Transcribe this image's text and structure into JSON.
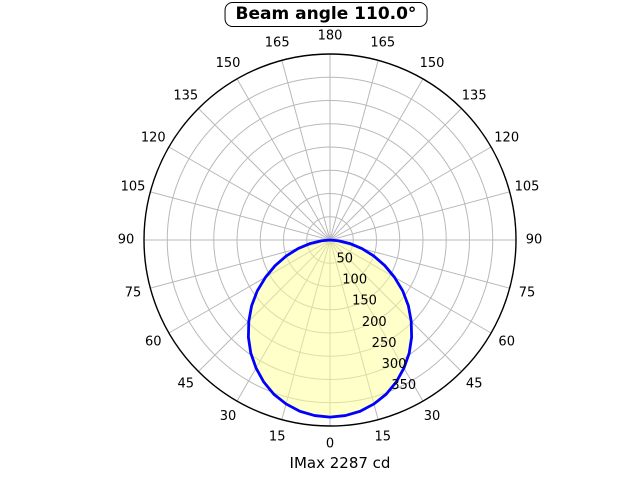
{
  "chart_data": {
    "type": "line",
    "subtype": "polar-intensity-distribution",
    "title": "Beam angle 110.0°",
    "footer": "IMax 2287 cd",
    "beam_angle_deg": 110.0,
    "imax_cd": 2287,
    "theta_axis": {
      "tick_step_deg": 15,
      "tick_labels_deg": [
        0,
        15,
        30,
        45,
        60,
        75,
        90,
        105,
        120,
        135,
        150,
        165,
        180
      ],
      "mirrored_both_sides": true,
      "zero_direction": "down"
    },
    "r_axis": {
      "max": 400,
      "tick_values": [
        50,
        100,
        150,
        200,
        250,
        300,
        350
      ],
      "label_ray_deg_from_nadir": 25
    },
    "grid": true,
    "series": [
      {
        "name": "luminous-intensity-curve",
        "angles_deg": [
          -90,
          -85,
          -80,
          -75,
          -70,
          -65,
          -60,
          -55,
          -50,
          -45,
          -40,
          -35,
          -30,
          -25,
          -20,
          -15,
          -10,
          -5,
          0,
          5,
          10,
          15,
          20,
          25,
          30,
          35,
          40,
          45,
          50,
          55,
          60,
          65,
          70,
          75,
          80,
          85,
          90
        ],
        "values": [
          0,
          18,
          43,
          71,
          100,
          130,
          160,
          191,
          220,
          247,
          273,
          297,
          318,
          337,
          353,
          365,
          374,
          379,
          381,
          379,
          374,
          365,
          353,
          337,
          318,
          297,
          273,
          247,
          220,
          191,
          160,
          130,
          100,
          71,
          43,
          18,
          0
        ]
      }
    ]
  },
  "colors": {
    "curve": "#0000ff",
    "curve_fill": "rgba(255,255,150,0.5)",
    "grid": "#b9b9b9",
    "axis": "#000000",
    "background": "#ffffff"
  }
}
